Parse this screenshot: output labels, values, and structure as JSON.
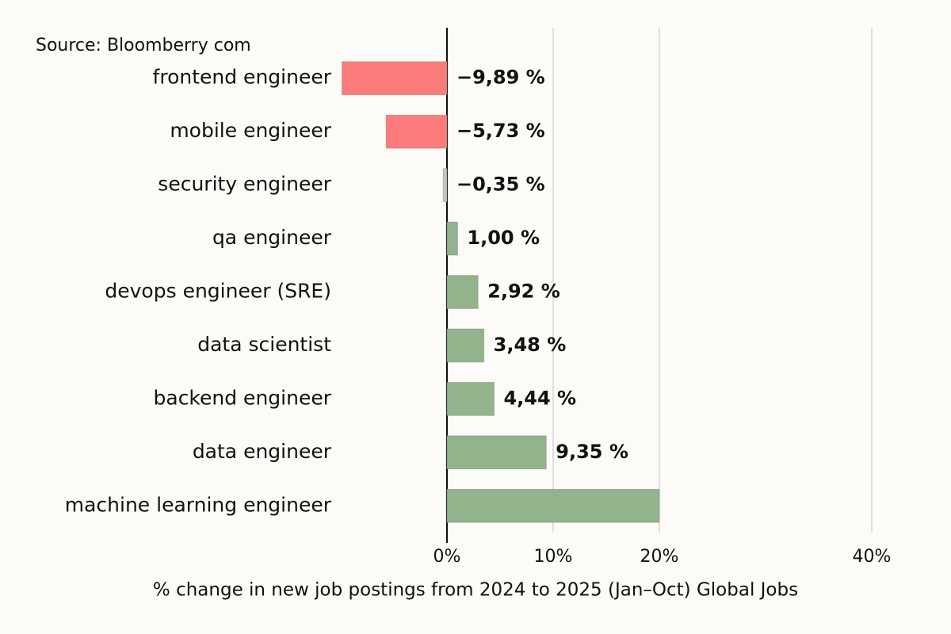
{
  "chart_data": {
    "type": "bar",
    "orientation": "horizontal",
    "source": "Source: Bloomberry com",
    "x_label": "% change in new job postings from 2024 to 2025 (Jan–Oct) Global Jobs",
    "categories": [
      "frontend engineer",
      "mobile engineer",
      "security engineer",
      "qa engineer",
      "devops engineer (SRE)",
      "data scientist",
      "backend engineer",
      "data engineer",
      "machine learning engineer"
    ],
    "values": [
      -9.89,
      -5.73,
      -0.35,
      1.0,
      2.92,
      3.48,
      4.44,
      9.35,
      20
    ],
    "value_labels": [
      "−9,89 %",
      "−5,73 %",
      "−0,35 %",
      "1,00 %",
      "2,92 %",
      "3,48 %",
      "4,44 %",
      "9,35 %",
      null
    ],
    "colors": [
      "#fb7b7b",
      "#fb7b7b",
      "#c4c4c4",
      "#92b38c",
      "#92b38c",
      "#92b38c",
      "#92b38c",
      "#92b38c",
      "#92b38c"
    ],
    "xlim": [
      -10,
      40
    ],
    "xticks": [
      {
        "value": 0,
        "label": "0%"
      },
      {
        "value": 10,
        "label": "10%"
      },
      {
        "value": 20,
        "label": "20%"
      },
      {
        "value": 40,
        "label": "40%"
      }
    ],
    "grid": true
  }
}
